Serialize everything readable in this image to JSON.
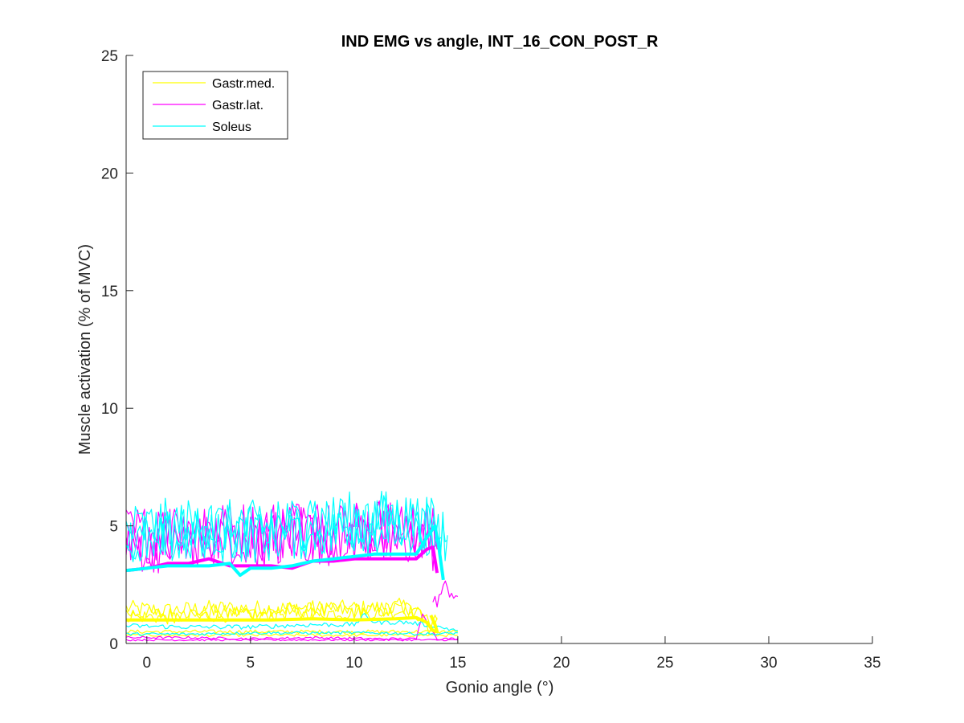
{
  "chart_data": {
    "type": "line",
    "title": "IND EMG vs angle, INT_16_CON_POST_R",
    "xlabel": "Gonio angle (°)",
    "ylabel": "Muscle activation (% of MVC)",
    "xlim": [
      -1,
      35
    ],
    "ylim": [
      0,
      25
    ],
    "xticks": [
      0,
      5,
      10,
      15,
      20,
      25,
      30,
      35
    ],
    "yticks": [
      0,
      5,
      10,
      15,
      20,
      25
    ],
    "x_tick_labels": [
      "0",
      "5",
      "10",
      "15",
      "20",
      "25",
      "30",
      "35"
    ],
    "y_tick_labels": [
      "0",
      "5",
      "10",
      "15",
      "20",
      "25"
    ],
    "grid": false,
    "legend_position": "top-left",
    "legend": [
      {
        "name": "Gastr.med.",
        "color": "#FFFF00"
      },
      {
        "name": "Gastr.lat.",
        "color": "#FF00FF"
      },
      {
        "name": "Soleus",
        "color": "#00FFFF"
      }
    ],
    "series": [
      {
        "muscle": "Gastr.med.",
        "kind": "trial",
        "color": "#FFFF00",
        "x": [
          -1,
          1,
          3,
          5,
          7,
          9,
          11,
          12.5,
          13.2,
          13.6,
          14.0
        ],
        "y": [
          1.5,
          1.4,
          1.5,
          1.5,
          1.5,
          1.5,
          1.5,
          1.6,
          1.3,
          0.8,
          1.1
        ],
        "noise": 0.35
      },
      {
        "muscle": "Gastr.med.",
        "kind": "trial",
        "color": "#FFFF00",
        "x": [
          -1,
          1,
          3,
          5,
          7,
          9,
          11,
          12.5,
          13.2,
          13.6,
          14.0
        ],
        "y": [
          1.3,
          1.2,
          1.3,
          1.3,
          1.4,
          1.4,
          1.4,
          1.5,
          1.2,
          0.7,
          1.0
        ],
        "noise": 0.35
      },
      {
        "muscle": "Gastr.med.",
        "kind": "trial",
        "color": "#FFFF00",
        "x": [
          -1,
          1,
          3,
          5,
          7,
          9,
          11,
          12.5,
          13.4
        ],
        "y": [
          1.2,
          1.1,
          1.2,
          1.2,
          1.3,
          1.3,
          1.3,
          1.4,
          1.2
        ],
        "noise": 0.3
      },
      {
        "muscle": "Gastr.med.",
        "kind": "trial",
        "color": "#FFFF00",
        "x": [
          -1,
          2,
          5,
          8,
          11,
          14,
          15
        ],
        "y": [
          0.5,
          0.5,
          0.5,
          0.5,
          0.5,
          0.5,
          0.5
        ],
        "noise": 0.08
      },
      {
        "muscle": "Gastr.med.",
        "kind": "trial",
        "color": "#FFFF00",
        "x": [
          -1,
          2,
          5,
          8,
          11,
          14,
          15
        ],
        "y": [
          0.35,
          0.35,
          0.35,
          0.35,
          0.35,
          0.35,
          0.35
        ],
        "noise": 0.06
      },
      {
        "muscle": "Gastr.med.",
        "kind": "mean",
        "color": "#FFFF00",
        "x": [
          -1,
          0,
          2,
          4,
          6,
          8,
          10,
          12,
          13,
          13.5,
          13.8,
          14.0,
          13.9,
          13.7
        ],
        "y": [
          1.0,
          1.0,
          1.0,
          1.0,
          1.0,
          1.05,
          1.0,
          1.05,
          1.1,
          0.9,
          0.55,
          0.5,
          0.8,
          1.2
        ],
        "noise": 0.0
      },
      {
        "muscle": "Gastr.lat.",
        "kind": "trial",
        "color": "#FF00FF",
        "x": [
          -1,
          1,
          3,
          5,
          7,
          9,
          11,
          12.5,
          13.5,
          14.0
        ],
        "y": [
          4.6,
          4.8,
          4.9,
          4.8,
          4.9,
          4.9,
          5.0,
          4.9,
          4.8,
          4.3
        ],
        "noise": 1.3
      },
      {
        "muscle": "Gastr.lat.",
        "kind": "trial",
        "color": "#FF00FF",
        "x": [
          -1,
          1,
          3,
          5,
          7,
          9,
          11,
          12.5,
          13.5,
          14.0
        ],
        "y": [
          4.3,
          4.5,
          4.6,
          4.6,
          4.7,
          4.7,
          4.8,
          4.7,
          4.6,
          4.0
        ],
        "noise": 1.3
      },
      {
        "muscle": "Gastr.lat.",
        "kind": "trial",
        "color": "#FF00FF",
        "x": [
          -1,
          1,
          3,
          5,
          7,
          9,
          11,
          12.5,
          13.5
        ],
        "y": [
          4.1,
          4.2,
          4.3,
          4.4,
          4.5,
          4.5,
          4.6,
          4.5,
          4.5
        ],
        "noise": 1.2
      },
      {
        "muscle": "Gastr.lat.",
        "kind": "trial",
        "color": "#FF00FF",
        "x": [
          13.8,
          14.1,
          14.4,
          14.7,
          15.0
        ],
        "y": [
          1.6,
          2.0,
          2.4,
          2.2,
          2.0
        ],
        "noise": 0.35
      },
      {
        "muscle": "Gastr.lat.",
        "kind": "trial",
        "color": "#FF00FF",
        "x": [
          -1,
          2,
          5,
          8,
          11,
          13,
          13.3,
          14,
          15
        ],
        "y": [
          0.25,
          0.25,
          0.2,
          0.25,
          0.2,
          0.2,
          1.3,
          0.2,
          0.2
        ],
        "noise": 0.05
      },
      {
        "muscle": "Gastr.lat.",
        "kind": "trial",
        "color": "#FF00FF",
        "x": [
          -1,
          2,
          5,
          8,
          11,
          14,
          15
        ],
        "y": [
          0.15,
          0.15,
          0.15,
          0.15,
          0.15,
          0.15,
          0.15
        ],
        "noise": 0.04
      },
      {
        "muscle": "Gastr.lat.",
        "kind": "mean",
        "color": "#FF00FF",
        "x": [
          -1,
          0,
          1,
          2,
          3,
          4,
          5,
          6,
          7,
          8,
          9,
          10,
          11,
          12,
          13,
          13.5,
          13.8,
          14.0
        ],
        "y": [
          3.1,
          3.2,
          3.4,
          3.4,
          3.6,
          3.3,
          3.3,
          3.3,
          3.2,
          3.5,
          3.5,
          3.6,
          3.6,
          3.6,
          3.6,
          4.0,
          4.1,
          3.0
        ],
        "noise": 0.0
      },
      {
        "muscle": "Soleus",
        "kind": "trial",
        "color": "#00FFFF",
        "x": [
          -1,
          1,
          3,
          5,
          7,
          9,
          11,
          12.5,
          13.5,
          14.5
        ],
        "y": [
          4.8,
          5.0,
          5.0,
          4.9,
          5.1,
          5.2,
          5.4,
          5.3,
          5.2,
          4.4
        ],
        "noise": 1.2
      },
      {
        "muscle": "Soleus",
        "kind": "trial",
        "color": "#00FFFF",
        "x": [
          -1,
          1,
          3,
          5,
          7,
          9,
          11,
          12.5,
          13.5,
          14.5
        ],
        "y": [
          4.5,
          4.7,
          4.8,
          4.7,
          4.9,
          5.0,
          5.2,
          5.1,
          5.0,
          4.6
        ],
        "noise": 1.2
      },
      {
        "muscle": "Soleus",
        "kind": "trial",
        "color": "#00FFFF",
        "x": [
          -1,
          1,
          3,
          5,
          7,
          9,
          11,
          12.5,
          13.5,
          14.2
        ],
        "y": [
          4.2,
          4.4,
          4.5,
          4.5,
          4.6,
          4.8,
          4.9,
          4.9,
          4.8,
          4.5
        ],
        "noise": 1.1
      },
      {
        "muscle": "Soleus",
        "kind": "trial",
        "color": "#00FFFF",
        "x": [
          -1,
          2,
          5,
          8,
          10,
          10.5,
          11,
          12.5,
          13.5,
          15
        ],
        "y": [
          0.75,
          0.7,
          0.7,
          0.8,
          0.8,
          1.2,
          0.9,
          0.9,
          0.8,
          0.55
        ],
        "noise": 0.1
      },
      {
        "muscle": "Soleus",
        "kind": "trial",
        "color": "#00FFFF",
        "x": [
          -1,
          2,
          5,
          8,
          11,
          14,
          15
        ],
        "y": [
          0.4,
          0.4,
          0.45,
          0.45,
          0.45,
          0.4,
          0.45
        ],
        "noise": 0.06
      },
      {
        "muscle": "Soleus",
        "kind": "mean",
        "color": "#00FFFF",
        "x": [
          -1,
          0,
          1,
          2,
          3,
          4,
          4.5,
          5,
          6,
          7,
          8,
          9,
          10,
          11,
          12,
          13,
          13.5,
          13.9,
          14.1,
          14.3
        ],
        "y": [
          3.1,
          3.2,
          3.3,
          3.3,
          3.3,
          3.4,
          2.9,
          3.2,
          3.2,
          3.3,
          3.5,
          3.6,
          3.7,
          3.8,
          3.8,
          3.8,
          4.5,
          5.0,
          4.0,
          2.7
        ],
        "noise": 0.0
      }
    ]
  }
}
